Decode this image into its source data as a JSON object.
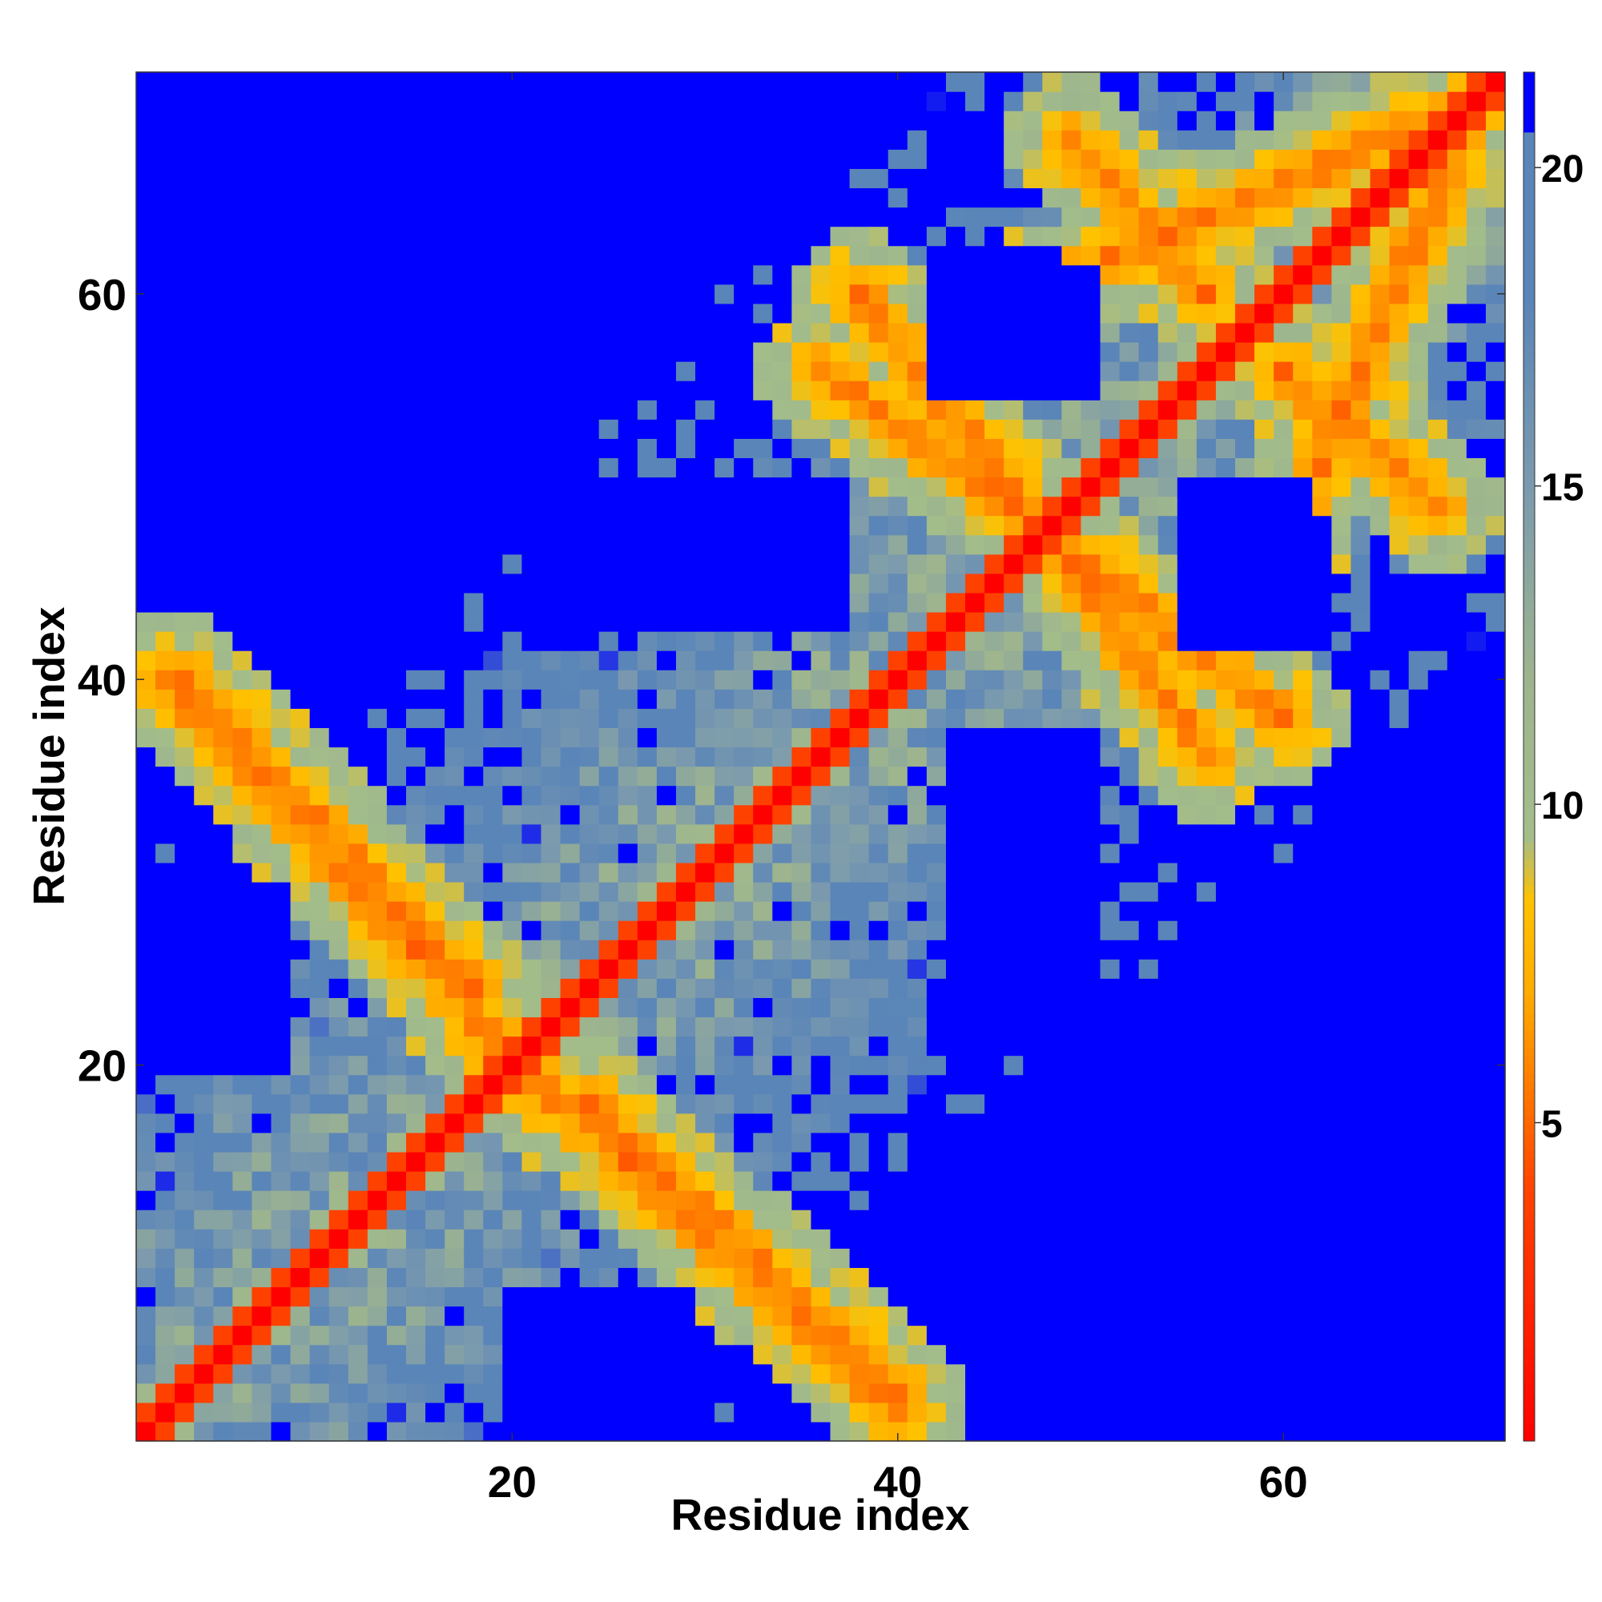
{
  "chart_data": {
    "type": "heatmap",
    "title": "",
    "xlabel": "Residue index",
    "ylabel": "Residue index",
    "x_range": [
      1,
      71
    ],
    "y_range": [
      1,
      71
    ],
    "x_ticks": [
      "20",
      "40",
      "60"
    ],
    "y_ticks": [
      "20",
      "40",
      "60"
    ],
    "colorbar": {
      "ticks": [
        "5",
        "10",
        "15",
        "20"
      ],
      "range": [
        0,
        21.5
      ],
      "legend_position": "right"
    },
    "colors": {
      "very_close": "#ff0000",
      "close": "#ff6600",
      "near": "#ffaa00",
      "mid": "#a3bd8a",
      "mid_far": "#8aa89d",
      "far": "#5a85b8",
      "very_far": "#0000ff"
    },
    "color_scale": [
      {
        "value": 0,
        "color": "#ff0000"
      },
      {
        "value": 4,
        "color": "#ff4400"
      },
      {
        "value": 5.5,
        "color": "#ff7700"
      },
      {
        "value": 7,
        "color": "#ffaa00"
      },
      {
        "value": 8.5,
        "color": "#ffc200"
      },
      {
        "value": 9.5,
        "color": "#a3bd8a"
      },
      {
        "value": 12,
        "color": "#9db48e"
      },
      {
        "value": 15,
        "color": "#7b9aae"
      },
      {
        "value": 18,
        "color": "#5a85b8"
      },
      {
        "value": 20.5,
        "color": "#5a85b8"
      },
      {
        "value": 20.6,
        "color": "#0000ff"
      },
      {
        "value": 21.5,
        "color": "#0000ff"
      }
    ],
    "n_residues": 71,
    "diagonal_contacts": "distance below 4 along the main diagonal",
    "contact_bands": [
      {
        "from": [
          2,
          40
        ],
        "to": [
          15,
          26
        ]
      },
      {
        "from": [
          15,
          26
        ],
        "to": [
          22,
          18
        ]
      },
      {
        "from": [
          24,
          18
        ],
        "to": [
          40,
          3
        ]
      },
      {
        "from": [
          36,
          56
        ],
        "to": [
          46,
          49
        ]
      },
      {
        "from": [
          46,
          49
        ],
        "to": [
          60,
          38
        ]
      },
      {
        "from": [
          47,
          60
        ],
        "to": [
          56,
          64
        ]
      },
      {
        "from": [
          56,
          64
        ],
        "to": [
          70,
          70
        ]
      },
      {
        "from": [
          60,
          56
        ],
        "to": [
          68,
          49
        ]
      }
    ],
    "distant_blocks": [
      {
        "x": [
          7,
          13
        ],
        "y": [
          44,
          50
        ]
      },
      {
        "x": [
          21,
          37
        ],
        "y": [
          44,
          50
        ]
      },
      {
        "x": [
          42,
          48
        ],
        "y": [
          55,
          62
        ]
      },
      {
        "x": [
          55,
          61
        ],
        "y": [
          42,
          50
        ]
      },
      {
        "x": [
          43,
          50
        ],
        "y": [
          22,
          37
        ]
      },
      {
        "x": [
          44,
          48
        ],
        "y": [
          6,
          14
        ]
      },
      {
        "x": [
          21,
          26
        ],
        "y": [
          1,
          7
        ]
      },
      {
        "x": [
          1,
          8
        ],
        "y": [
          20,
          29
        ]
      },
      {
        "x": [
          19,
          28
        ],
        "y": [
          69,
          71
        ]
      }
    ]
  }
}
